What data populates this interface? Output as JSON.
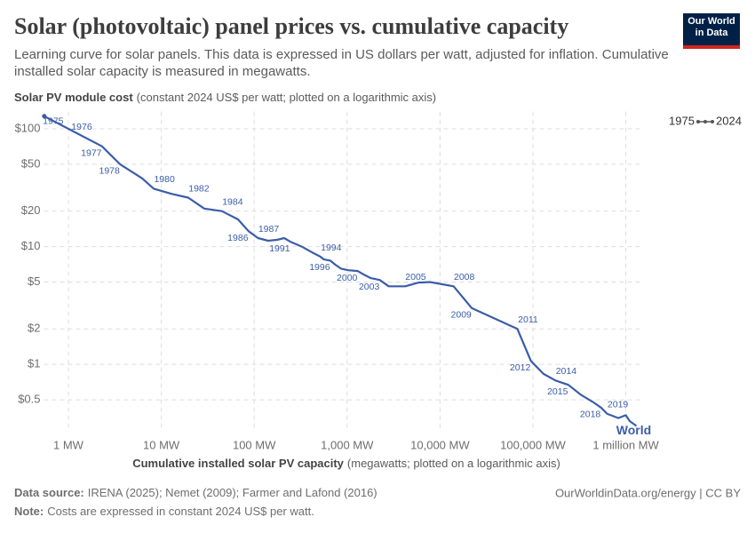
{
  "chart_data": {
    "type": "line",
    "title": "Solar (photovoltaic) panel prices vs. cumulative capacity",
    "subtitle": "Learning curve for solar panels. This data is expressed in US dollars per watt, adjusted for inflation. Cumulative installed solar capacity is measured in megawatts.",
    "logo": "Our World in Data",
    "y_label": "Solar PV module cost",
    "y_label_detail": "(constant 2024 US$ per watt; plotted on a logarithmic axis)",
    "x_label": "Cumulative installed solar PV capacity",
    "x_label_detail": "(megawatts; plotted on a logarithmic axis)",
    "time_start": "1975",
    "time_end": "2024",
    "xscale": "log",
    "yscale": "log",
    "grid": true,
    "xlim": [
      0.5,
      1500000
    ],
    "ylim": [
      0.25,
      140
    ],
    "xticks": [
      {
        "value": 1,
        "label": "1 MW"
      },
      {
        "value": 10,
        "label": "10 MW"
      },
      {
        "value": 100,
        "label": "100 MW"
      },
      {
        "value": 1000,
        "label": "1,000 MW"
      },
      {
        "value": 10000,
        "label": "10,000 MW"
      },
      {
        "value": 100000,
        "label": "100,000 MW"
      },
      {
        "value": 1000000,
        "label": "1 million MW"
      }
    ],
    "yticks": [
      {
        "value": 100,
        "label": "$100"
      },
      {
        "value": 50,
        "label": "$50"
      },
      {
        "value": 20,
        "label": "$20"
      },
      {
        "value": 10,
        "label": "$10"
      },
      {
        "value": 5,
        "label": "$5"
      },
      {
        "value": 2,
        "label": "$2"
      },
      {
        "value": 1,
        "label": "$1"
      },
      {
        "value": 0.5,
        "label": "$0.5"
      }
    ],
    "series": [
      {
        "name": "World",
        "color": "#3a5da8",
        "x": [
          0.55,
          1.0,
          2.3,
          3.6,
          6.2,
          8.3,
          13,
          19.5,
          29,
          45,
          67,
          87,
          110,
          141,
          176,
          210,
          245,
          325,
          424,
          517,
          560,
          660,
          750,
          860,
          1030,
          1300,
          1500,
          1800,
          2250,
          2800,
          4200,
          5900,
          7800,
          14000,
          22000,
          41000,
          68000,
          95000,
          130000,
          175000,
          240000,
          330000,
          440000,
          540000,
          630000,
          690000,
          830000,
          1000000,
          1100000,
          1300000
        ],
        "values": [
          128,
          100,
          71,
          50,
          38,
          31,
          28,
          26,
          21,
          20,
          17,
          13.5,
          11.8,
          11.2,
          11.4,
          11.8,
          11,
          10,
          8.9,
          8.2,
          7.8,
          7.6,
          7.0,
          6.5,
          6.3,
          6.2,
          5.8,
          5.4,
          5.2,
          4.6,
          4.6,
          4.95,
          5.0,
          4.6,
          3.0,
          2.4,
          2.0,
          1.07,
          0.83,
          0.73,
          0.67,
          0.55,
          0.48,
          0.43,
          0.38,
          0.37,
          0.35,
          0.37,
          0.33,
          0.3
        ],
        "labels": [
          "1975",
          "1976",
          "1977",
          "1978",
          null,
          "1980",
          null,
          "1982",
          null,
          "1984",
          null,
          "1986",
          "1987",
          null,
          null,
          null,
          "1991",
          null,
          null,
          "1994",
          null,
          "1996",
          null,
          null,
          null,
          "2000",
          null,
          null,
          "2003",
          null,
          "2005",
          null,
          null,
          "2008",
          "2009",
          null,
          "2011",
          "2012",
          null,
          "2014",
          "2015",
          null,
          null,
          "2018",
          "2019",
          null,
          null,
          null,
          null,
          null
        ]
      }
    ],
    "source_label": "Data source:",
    "source": "IRENA (2025); Nemet (2009); Farmer and Lafond (2016)",
    "credit": "OurWorldinData.org/energy | CC BY",
    "note_label": "Note:",
    "note": "Costs are expressed in constant 2024 US$ per watt."
  }
}
